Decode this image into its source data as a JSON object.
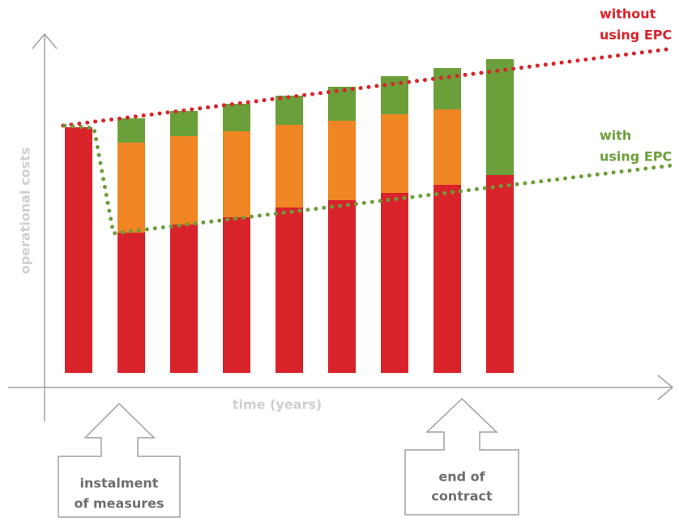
{
  "chart_data": {
    "type": "bar",
    "stacked": true,
    "categories": [
      null,
      null,
      null,
      null,
      null,
      null,
      null,
      null,
      null
    ],
    "series": [
      {
        "color": "#d9232a",
        "values": [
          303,
          173,
          183,
          192,
          204,
          213,
          222,
          232,
          244
        ]
      },
      {
        "color": "#f08523",
        "values": [
          null,
          111,
          109,
          106,
          102,
          98,
          97,
          93,
          null
        ]
      },
      {
        "color": "#6b9f3a",
        "values": [
          null,
          30,
          31,
          34,
          36,
          42,
          47,
          51,
          143
        ]
      }
    ],
    "ylim": [
      0,
      420
    ],
    "y_label": "operational costs",
    "x_label": "time (years)",
    "annotations": {
      "without": [
        "without",
        "using EPC"
      ],
      "with": [
        "with",
        "using EPC"
      ],
      "start": [
        "instalment",
        "of measures"
      ],
      "end": [
        "end of",
        "contract"
      ]
    }
  }
}
